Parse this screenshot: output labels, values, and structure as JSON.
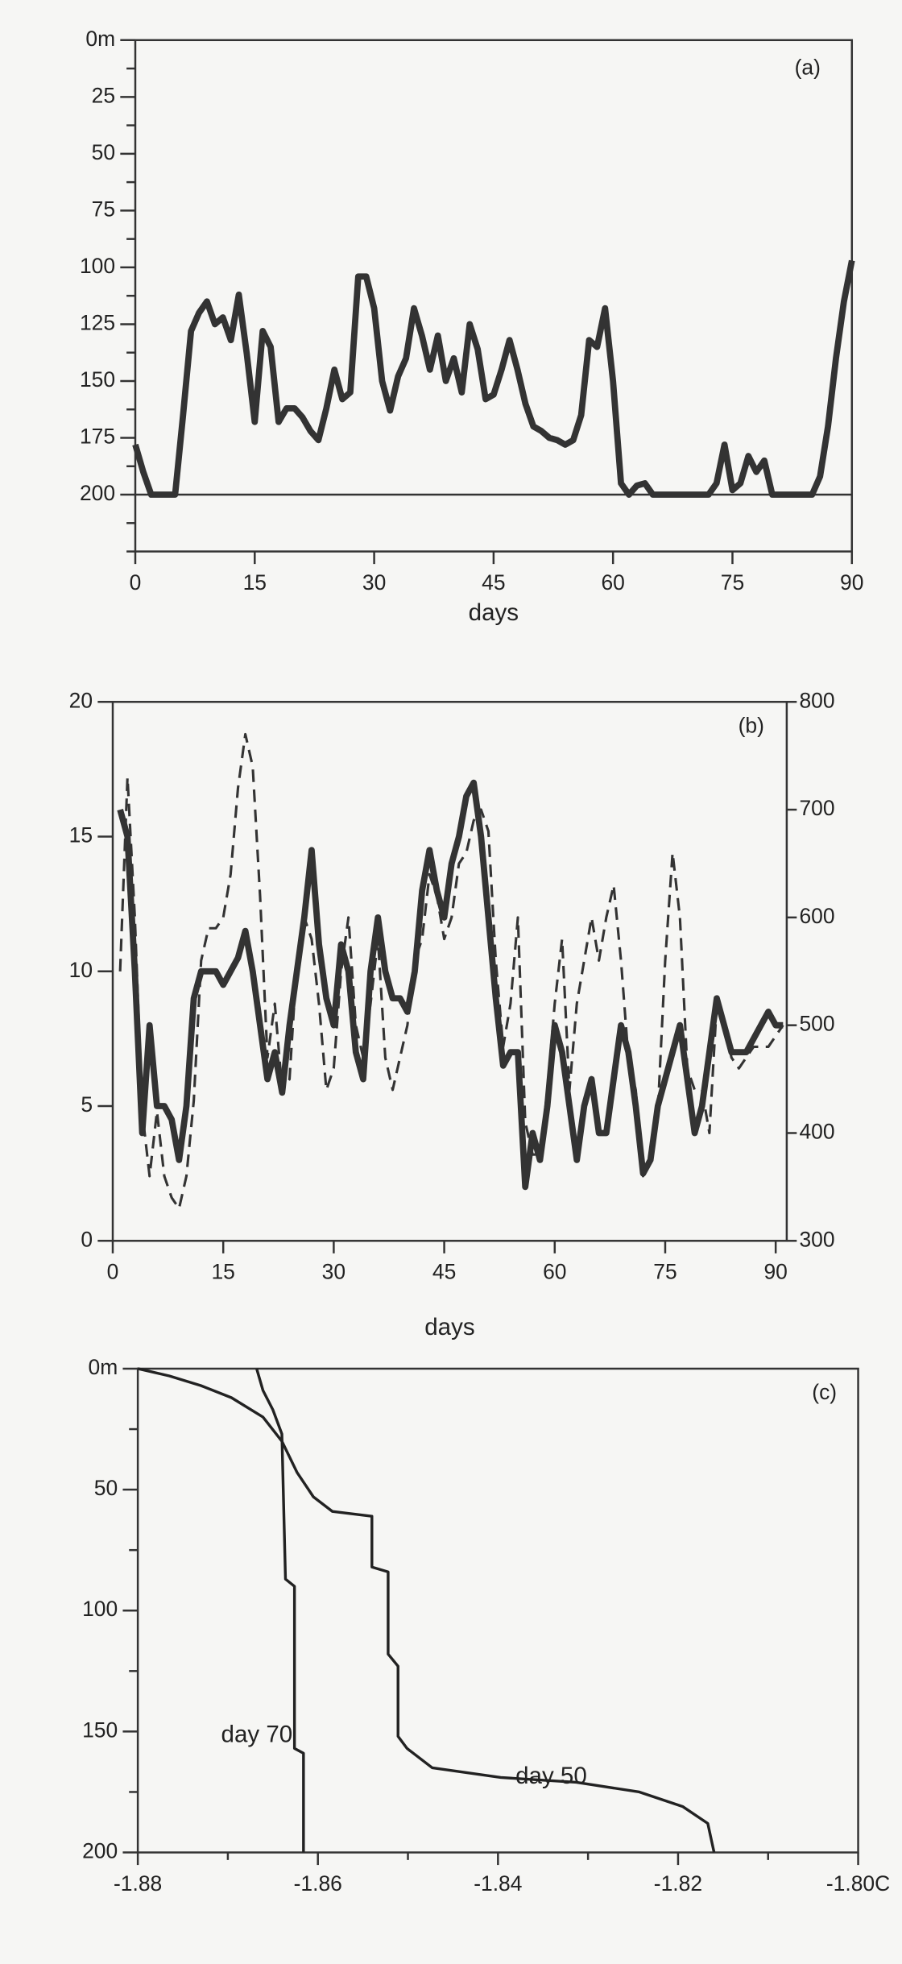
{
  "chart_data": [
    {
      "type": "line",
      "panel_label": "(a)",
      "xlabel": "days",
      "invert_y": true,
      "xlim": [
        0,
        90
      ],
      "xticks": [
        0,
        15,
        30,
        45,
        60,
        75,
        90
      ],
      "ylim": [
        0,
        225
      ],
      "yticks": [
        {
          "value": 0,
          "label": "0m"
        },
        25,
        50,
        75,
        100,
        125,
        150,
        175,
        200
      ],
      "minor_yticks": [
        12.5,
        37.5,
        62.5,
        87.5,
        112.5,
        137.5,
        162.5,
        187.5,
        212.5,
        225
      ],
      "reference_line": 200,
      "x": [
        0,
        1,
        2,
        3,
        4,
        5,
        6,
        7,
        8,
        9,
        10,
        11,
        12,
        13,
        14,
        15,
        16,
        17,
        18,
        19,
        20,
        21,
        22,
        23,
        24,
        25,
        26,
        27,
        28,
        29,
        30,
        31,
        32,
        33,
        34,
        35,
        36,
        37,
        38,
        39,
        40,
        41,
        42,
        43,
        44,
        45,
        46,
        47,
        48,
        49,
        50,
        51,
        52,
        53,
        54,
        55,
        56,
        57,
        58,
        59,
        60,
        61,
        62,
        63,
        64,
        65,
        66,
        67,
        68,
        69,
        70,
        71,
        72,
        73,
        74,
        75,
        76,
        77,
        78,
        79,
        80,
        81,
        82,
        83,
        84,
        85,
        86,
        87,
        88,
        89,
        90
      ],
      "series": [
        {
          "color": "#333333",
          "style": "solid",
          "values": [
            178,
            190,
            200,
            200,
            200,
            200,
            165,
            128,
            120,
            115,
            125,
            122,
            132,
            112,
            138,
            168,
            128,
            135,
            168,
            162,
            162,
            166,
            172,
            176,
            162,
            145,
            158,
            155,
            104,
            104,
            118,
            150,
            163,
            148,
            140,
            118,
            130,
            145,
            130,
            150,
            140,
            155,
            125,
            136,
            158,
            156,
            145,
            132,
            145,
            160,
            170,
            172,
            175,
            176,
            178,
            176,
            165,
            132,
            135,
            118,
            150,
            195,
            200,
            196,
            195,
            200,
            200,
            200,
            200,
            200,
            200,
            200,
            200,
            195,
            178,
            198,
            195,
            183,
            190,
            185,
            200,
            200,
            200,
            200,
            200,
            200,
            192,
            170,
            140,
            115,
            97
          ]
        }
      ]
    },
    {
      "type": "line",
      "panel_label": "(b)",
      "xlabel": "days",
      "xlim": [
        0,
        91.5
      ],
      "xticks": [
        0,
        15,
        30,
        45,
        60,
        75,
        90
      ],
      "ylim": [
        0,
        20
      ],
      "yticks": [
        0,
        5,
        10,
        15,
        20
      ],
      "y2lim": [
        300,
        800
      ],
      "y2ticks": [
        300,
        400,
        500,
        600,
        700,
        800
      ],
      "x": [
        1,
        2,
        3,
        4,
        5,
        6,
        7,
        8,
        9,
        10,
        11,
        12,
        13,
        14,
        15,
        16,
        17,
        18,
        19,
        20,
        21,
        22,
        23,
        24,
        25,
        26,
        27,
        28,
        29,
        30,
        31,
        32,
        33,
        34,
        35,
        36,
        37,
        38,
        39,
        40,
        41,
        42,
        43,
        44,
        45,
        46,
        47,
        48,
        49,
        50,
        51,
        52,
        53,
        54,
        55,
        56,
        57,
        58,
        59,
        60,
        61,
        62,
        63,
        64,
        65,
        66,
        67,
        68,
        69,
        70,
        71,
        72,
        73,
        74,
        75,
        76,
        77,
        78,
        79,
        80,
        81,
        82,
        83,
        84,
        85,
        86,
        87,
        88,
        89,
        90,
        91
      ],
      "series": [
        {
          "color": "#333333",
          "style": "solid",
          "values": [
            16,
            15,
            10,
            4,
            8,
            5,
            5,
            4.5,
            3,
            5,
            9,
            10,
            10,
            10,
            9.5,
            10,
            10.5,
            11.5,
            10,
            8,
            6,
            7,
            5.5,
            8,
            10,
            12,
            14.5,
            11,
            9,
            8,
            11,
            10,
            7,
            6,
            10,
            12,
            10,
            9,
            9,
            8.5,
            10,
            13,
            14.5,
            13,
            12,
            14,
            15,
            16.5,
            17,
            15,
            12,
            9,
            6.5,
            7,
            7,
            2,
            4,
            3,
            5,
            8,
            7,
            5,
            3,
            5,
            6,
            4,
            4,
            6,
            8,
            7,
            5,
            2.5,
            3,
            5,
            6,
            7,
            8,
            6,
            4,
            5,
            7,
            9,
            8,
            7,
            7,
            7,
            7.5,
            8,
            8.5,
            8,
            8
          ]
        },
        {
          "color": "#333333",
          "style": "dashed",
          "axis": "y2",
          "values": [
            550,
            730,
            600,
            420,
            360,
            420,
            360,
            340,
            330,
            360,
            430,
            560,
            590,
            590,
            600,
            640,
            720,
            770,
            740,
            620,
            470,
            520,
            440,
            450,
            560,
            600,
            580,
            520,
            440,
            460,
            550,
            600,
            500,
            470,
            520,
            580,
            470,
            440,
            470,
            500,
            560,
            580,
            640,
            620,
            580,
            600,
            650,
            660,
            690,
            700,
            680,
            560,
            480,
            520,
            600,
            410,
            380,
            380,
            440,
            520,
            580,
            440,
            520,
            560,
            600,
            560,
            600,
            630,
            560,
            470,
            440,
            360,
            380,
            420,
            560,
            660,
            600,
            460,
            440,
            440,
            400,
            520,
            500,
            470,
            460,
            470,
            480,
            480,
            480,
            490,
            500
          ]
        }
      ]
    },
    {
      "type": "line",
      "panel_label": "(c)",
      "invert_y": true,
      "xlim": [
        -1.88,
        -1.8
      ],
      "xticks": [
        -1.88,
        -1.86,
        -1.84,
        -1.82,
        {
          "value": -1.8,
          "label": "-1.80C"
        }
      ],
      "minor_xticks": [
        -1.87,
        -1.85,
        -1.83,
        -1.81
      ],
      "ylim": [
        0,
        200
      ],
      "yticks": [
        {
          "value": 0,
          "label": "0m"
        },
        50,
        100,
        150,
        200
      ],
      "minor_yticks": [
        25,
        75,
        125,
        175
      ],
      "series": [
        {
          "name": "day 70",
          "color": "#222222",
          "style": "solid",
          "x": [
            -1.8668,
            -1.8661,
            -1.865,
            -1.864,
            -1.8636,
            -1.8626,
            -1.8626,
            -1.8616,
            -1.8616
          ],
          "values": [
            0,
            9,
            17,
            27,
            87,
            90,
            157,
            159,
            200
          ]
        },
        {
          "name": "day 50",
          "color": "#222222",
          "style": "solid",
          "x": [
            -1.88,
            -1.8765,
            -1.873,
            -1.8696,
            -1.8661,
            -1.864,
            -1.8623,
            -1.8605,
            -1.8584,
            -1.854,
            -1.854,
            -1.8522,
            -1.8522,
            -1.8511,
            -1.8511,
            -1.8501,
            -1.8473,
            -1.8397,
            -1.8313,
            -1.8243,
            -1.8195,
            -1.8167,
            -1.816
          ],
          "values": [
            0,
            3,
            7,
            12,
            20,
            30,
            43,
            53,
            59,
            61,
            82,
            84,
            118,
            123,
            152,
            157,
            165,
            169,
            171,
            175,
            181,
            188,
            200
          ]
        }
      ]
    }
  ]
}
